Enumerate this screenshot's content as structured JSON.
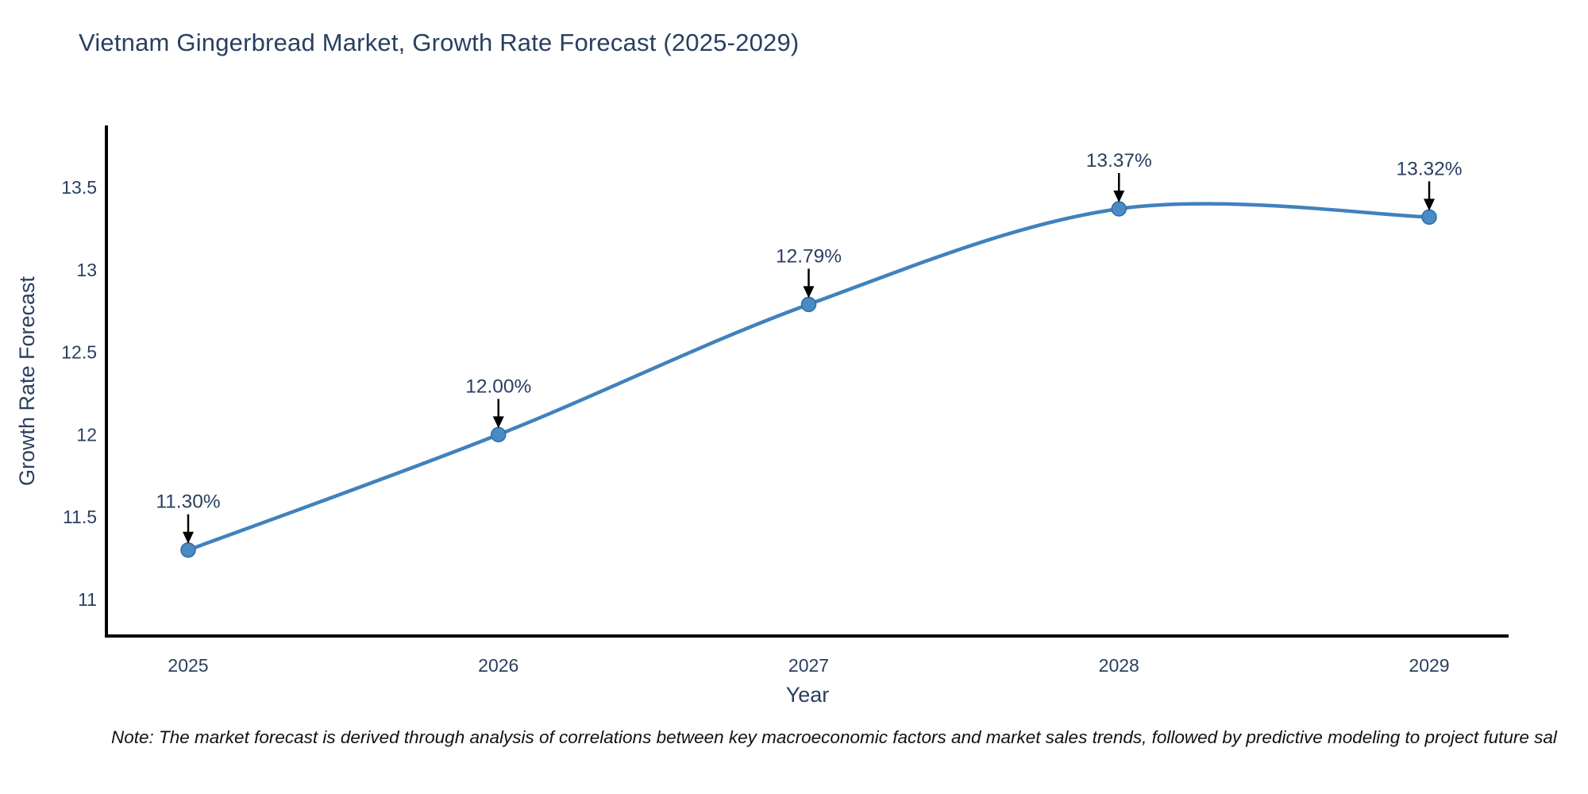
{
  "title": "Vietnam Gingerbread Market, Growth Rate Forecast (2025-2029)",
  "note": "Note: The market forecast is derived through analysis of correlations between key macroeconomic factors and market sales trends, followed by predictive modeling to project future sal",
  "chart_data": {
    "type": "line",
    "title": "Vietnam Gingerbread Market, Growth Rate Forecast (2025-2029)",
    "xlabel": "Year",
    "ylabel": "Growth Rate Forecast",
    "categories": [
      "2025",
      "2026",
      "2027",
      "2028",
      "2029"
    ],
    "series": [
      {
        "name": "Growth Rate Forecast",
        "values": [
          11.3,
          12.0,
          12.79,
          13.37,
          13.32
        ]
      }
    ],
    "point_labels": [
      "11.30%",
      "12.00%",
      "12.79%",
      "13.37%",
      "13.32%"
    ],
    "y_ticks": [
      "11",
      "11.5",
      "12",
      "12.5",
      "13",
      "13.5"
    ],
    "y_tick_values": [
      11,
      11.5,
      12,
      12.5,
      13,
      13.5
    ],
    "ylim": [
      10.78,
      13.88
    ],
    "line_shape": "spline",
    "grid": false,
    "legend": "none",
    "colors": {
      "line": "#4181bd",
      "marker_fill": "#4a8bc6",
      "marker_border": "#2f6ca3",
      "axis_line": "#000000",
      "tick_text": "#2a3f5f",
      "axis_title_text": "#2a3f5f",
      "point_label_text": "#2a3f5f",
      "arrow": "#000000",
      "background": "#ffffff"
    }
  }
}
